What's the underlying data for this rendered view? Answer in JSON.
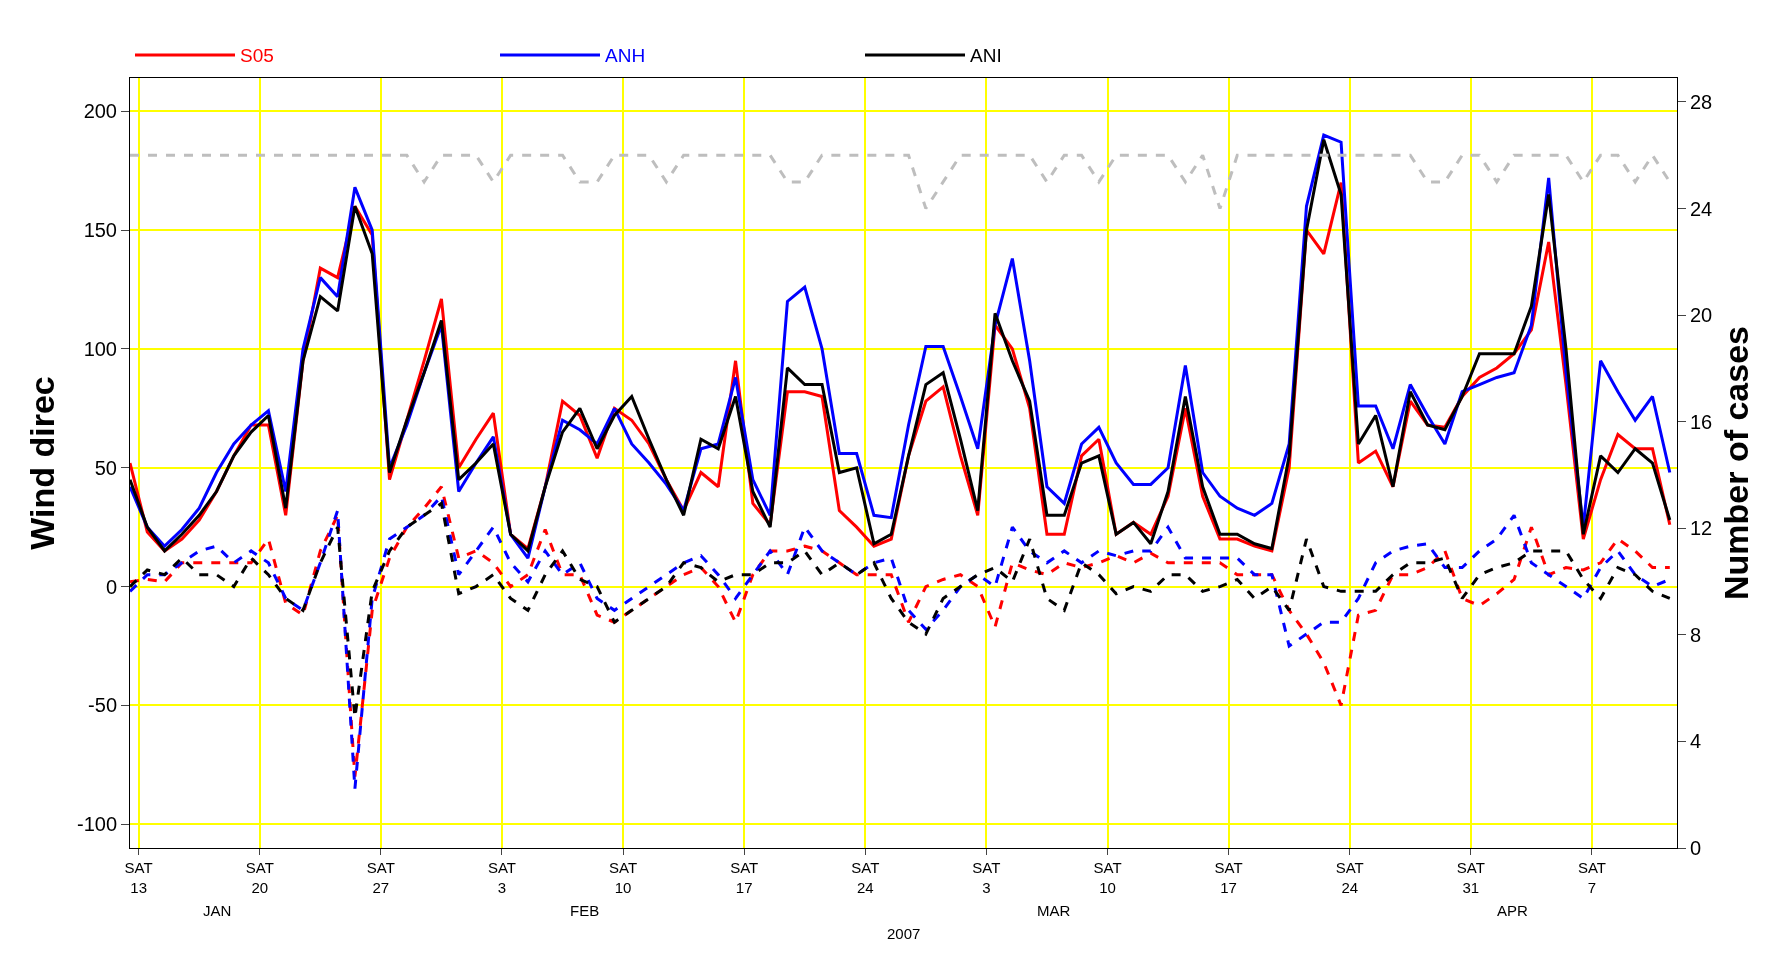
{
  "chart_data": {
    "type": "line",
    "xlabel": "2007",
    "ylabel": "Wind direc",
    "y2label": "Number of cases",
    "x": [
      "2007-01-12T12:00",
      "2007-01-13T12:00",
      "2007-01-14T12:00",
      "2007-01-15T12:00",
      "2007-01-16T12:00",
      "2007-01-17T12:00",
      "2007-01-18T12:00",
      "2007-01-19T12:00",
      "2007-01-20T12:00",
      "2007-01-21T12:00",
      "2007-01-22T12:00",
      "2007-01-23T12:00",
      "2007-01-24T12:00",
      "2007-01-25T12:00",
      "2007-01-26T12:00",
      "2007-01-27T12:00",
      "2007-01-28T12:00",
      "2007-01-29T12:00",
      "2007-01-30T12:00",
      "2007-01-31T12:00",
      "2007-02-01T12:00",
      "2007-02-02T12:00",
      "2007-02-03T12:00",
      "2007-02-04T12:00",
      "2007-02-05T12:00",
      "2007-02-06T12:00",
      "2007-02-07T12:00",
      "2007-02-08T12:00",
      "2007-02-09T12:00",
      "2007-02-10T12:00",
      "2007-02-11T12:00",
      "2007-02-12T12:00",
      "2007-02-13T12:00",
      "2007-02-14T12:00",
      "2007-02-15T12:00",
      "2007-02-16T12:00",
      "2007-02-17T12:00",
      "2007-02-18T12:00",
      "2007-02-19T12:00",
      "2007-02-20T12:00",
      "2007-02-21T12:00",
      "2007-02-22T12:00",
      "2007-02-23T12:00",
      "2007-02-24T12:00",
      "2007-02-25T12:00",
      "2007-02-26T12:00",
      "2007-02-27T12:00",
      "2007-02-28T12:00",
      "2007-03-01T12:00",
      "2007-03-02T12:00",
      "2007-03-03T12:00",
      "2007-03-04T12:00",
      "2007-03-05T12:00",
      "2007-03-06T12:00",
      "2007-03-07T12:00",
      "2007-03-08T12:00",
      "2007-03-09T12:00",
      "2007-03-10T12:00",
      "2007-03-11T12:00",
      "2007-03-12T12:00",
      "2007-03-13T12:00",
      "2007-03-14T12:00",
      "2007-03-15T12:00",
      "2007-03-16T12:00",
      "2007-03-17T12:00",
      "2007-03-18T12:00",
      "2007-03-19T12:00",
      "2007-03-20T12:00",
      "2007-03-21T12:00",
      "2007-03-22T12:00",
      "2007-03-23T12:00",
      "2007-03-24T12:00",
      "2007-03-25T12:00",
      "2007-03-26T12:00",
      "2007-03-27T12:00",
      "2007-03-28T12:00",
      "2007-03-29T12:00",
      "2007-03-30T12:00",
      "2007-03-31T12:00",
      "2007-04-01T12:00",
      "2007-04-02T12:00",
      "2007-04-03T12:00",
      "2007-04-04T12:00",
      "2007-04-05T12:00",
      "2007-04-06T12:00",
      "2007-04-07T12:00",
      "2007-04-08T12:00",
      "2007-04-09T12:00",
      "2007-04-10T12:00",
      "2007-04-11T12:00"
    ],
    "series": [
      {
        "name": "S05",
        "color": "#ff0000",
        "line_style": "solid",
        "values": [
          52,
          23,
          15,
          20,
          28,
          40,
          55,
          68,
          68,
          30,
          95,
          134,
          130,
          160,
          148,
          45,
          70,
          95,
          121,
          50,
          62,
          73,
          22,
          16,
          42,
          78,
          72,
          54,
          75,
          70,
          60,
          45,
          32,
          48,
          42,
          95,
          35,
          26,
          82,
          82,
          80,
          32,
          25,
          17,
          20,
          55,
          78,
          84,
          55,
          30,
          110,
          100,
          75,
          22,
          22,
          55,
          62,
          22,
          27,
          22,
          38,
          75,
          38,
          20,
          20,
          17,
          15,
          50,
          150,
          140,
          170,
          52,
          57,
          42,
          78,
          68,
          67,
          80,
          88,
          92,
          98,
          108,
          145,
          85,
          20,
          45,
          64,
          58,
          58,
          26
        ]
      },
      {
        "name": "ANH",
        "color": "#0000ff",
        "line_style": "solid",
        "values": [
          42,
          25,
          17,
          24,
          33,
          48,
          60,
          68,
          74,
          40,
          100,
          130,
          122,
          168,
          150,
          50,
          68,
          90,
          110,
          40,
          52,
          63,
          22,
          12,
          42,
          70,
          66,
          60,
          75,
          60,
          52,
          43,
          32,
          58,
          60,
          88,
          45,
          30,
          120,
          126,
          100,
          56,
          56,
          30,
          29,
          68,
          101,
          101,
          80,
          58,
          110,
          138,
          95,
          42,
          35,
          60,
          67,
          52,
          43,
          43,
          50,
          93,
          48,
          38,
          33,
          30,
          35,
          60,
          160,
          190,
          187,
          76,
          76,
          58,
          85,
          72,
          60,
          82,
          85,
          88,
          90,
          110,
          172,
          90,
          25,
          95,
          82,
          70,
          80,
          48
        ]
      },
      {
        "name": "ANI",
        "color": "#000000",
        "line_style": "solid",
        "values": [
          45,
          25,
          15,
          22,
          30,
          40,
          55,
          65,
          72,
          33,
          95,
          122,
          116,
          160,
          140,
          48,
          70,
          90,
          112,
          45,
          52,
          60,
          22,
          15,
          42,
          65,
          75,
          58,
          72,
          80,
          62,
          45,
          30,
          62,
          58,
          80,
          40,
          25,
          92,
          85,
          85,
          48,
          50,
          18,
          22,
          55,
          85,
          90,
          62,
          32,
          115,
          95,
          78,
          30,
          30,
          52,
          55,
          22,
          27,
          18,
          40,
          80,
          42,
          22,
          22,
          18,
          16,
          55,
          150,
          188,
          165,
          60,
          72,
          42,
          82,
          68,
          66,
          80,
          98,
          98,
          98,
          118,
          165,
          100,
          22,
          55,
          48,
          58,
          52,
          28
        ]
      },
      {
        "color": "#ff0000",
        "line_style": "dashed",
        "values": [
          2,
          3,
          2,
          10,
          10,
          10,
          10,
          10,
          20,
          -7,
          -12,
          15,
          30,
          -80,
          -10,
          12,
          25,
          33,
          42,
          12,
          15,
          10,
          0,
          5,
          24,
          5,
          5,
          -12,
          -15,
          -10,
          -5,
          0,
          5,
          8,
          0,
          -15,
          5,
          15,
          15,
          17,
          15,
          10,
          5,
          5,
          5,
          -15,
          0,
          3,
          5,
          0,
          -17,
          10,
          7,
          5,
          10,
          8,
          10,
          13,
          10,
          14,
          10,
          10,
          10,
          10,
          5,
          5,
          5,
          -10,
          -20,
          -32,
          -50,
          -12,
          -10,
          5,
          5,
          8,
          15,
          -5,
          -8,
          -3,
          3,
          25,
          5,
          8,
          7,
          10,
          20,
          15,
          8,
          8
        ]
      },
      {
        "color": "#0000ff",
        "line_style": "dashed",
        "values": [
          -2,
          5,
          5,
          10,
          15,
          17,
          10,
          15,
          10,
          -5,
          -10,
          10,
          32,
          -85,
          -5,
          20,
          25,
          30,
          38,
          5,
          15,
          25,
          10,
          2,
          15,
          5,
          10,
          -5,
          -10,
          -5,
          0,
          5,
          10,
          13,
          5,
          -5,
          5,
          15,
          5,
          25,
          15,
          10,
          5,
          10,
          12,
          -10,
          -18,
          -10,
          0,
          5,
          0,
          25,
          15,
          10,
          15,
          10,
          15,
          13,
          15,
          15,
          25,
          12,
          12,
          12,
          12,
          5,
          5,
          -25,
          -20,
          -15,
          -15,
          -5,
          10,
          15,
          17,
          18,
          8,
          8,
          15,
          20,
          30,
          10,
          5,
          0,
          -5,
          8,
          15,
          5,
          0,
          3
        ]
      },
      {
        "color": "#000000",
        "line_style": "dashed",
        "values": [
          0,
          7,
          5,
          12,
          5,
          5,
          0,
          12,
          5,
          -5,
          -10,
          10,
          25,
          -55,
          -2,
          15,
          25,
          30,
          35,
          -3,
          0,
          5,
          -5,
          -10,
          5,
          15,
          3,
          0,
          -15,
          -10,
          -5,
          0,
          10,
          8,
          2,
          5,
          5,
          10,
          10,
          15,
          5,
          10,
          5,
          10,
          -5,
          -15,
          -20,
          -5,
          0,
          5,
          8,
          2,
          20,
          -5,
          -10,
          10,
          5,
          -3,
          0,
          -2,
          5,
          5,
          -2,
          0,
          3,
          -5,
          0,
          -10,
          20,
          0,
          -2,
          -2,
          -2,
          5,
          10,
          10,
          12,
          -5,
          5,
          8,
          10,
          15,
          15,
          15,
          3,
          -5,
          8,
          5,
          -2,
          -5
        ]
      },
      {
        "color": "#bebebe",
        "line_style": "dashed",
        "axis": "y2",
        "values": [
          26,
          26,
          26,
          26,
          26,
          26,
          26,
          26,
          26,
          26,
          26,
          26,
          26,
          26,
          26,
          26,
          26,
          25,
          26,
          26,
          26,
          25,
          26,
          26,
          26,
          26,
          25,
          25,
          26,
          26,
          26,
          25,
          26,
          26,
          26,
          26,
          26,
          26,
          25,
          25,
          26,
          26,
          26,
          26,
          26,
          26,
          24,
          25,
          26,
          26,
          26,
          26,
          26,
          25,
          26,
          26,
          25,
          26,
          26,
          26,
          26,
          25,
          26,
          24,
          26,
          26,
          26,
          26,
          26,
          26,
          26,
          26,
          26,
          26,
          26,
          25,
          25,
          26,
          26,
          25,
          26,
          26,
          26,
          26,
          25,
          26,
          26,
          25,
          26,
          25
        ]
      }
    ],
    "xlim": [
      "2007-01-12T12:00",
      "2007-04-11T22:00"
    ],
    "xticks": [
      {
        "value": "2007-01-13",
        "label": "SAT\n13"
      },
      {
        "value": "2007-01-20",
        "label": "SAT\n20"
      },
      {
        "value": "2007-01-27",
        "label": "SAT\n27"
      },
      {
        "value": "2007-02-03",
        "label": "SAT\n3"
      },
      {
        "value": "2007-02-10",
        "label": "SAT\n10"
      },
      {
        "value": "2007-02-17",
        "label": "SAT\n17"
      },
      {
        "value": "2007-02-24",
        "label": "SAT\n24"
      },
      {
        "value": "2007-03-03",
        "label": "SAT\n3"
      },
      {
        "value": "2007-03-10",
        "label": "SAT\n10"
      },
      {
        "value": "2007-03-17",
        "label": "SAT\n17"
      },
      {
        "value": "2007-03-24",
        "label": "SAT\n24"
      },
      {
        "value": "2007-03-31",
        "label": "SAT\n31"
      },
      {
        "value": "2007-04-07",
        "label": "SAT\n7"
      }
    ],
    "ylim": [
      -110,
      214
    ],
    "yticks": [
      -100,
      -50,
      0,
      50,
      100,
      150,
      200
    ],
    "y2lim": [
      0,
      28.9
    ],
    "y2ticks": [
      0,
      4,
      8,
      12,
      16,
      20,
      24,
      28
    ],
    "annotations": [
      "JAN",
      "FEB",
      "MAR",
      "APR"
    ],
    "grid": true,
    "legend": "top left"
  }
}
